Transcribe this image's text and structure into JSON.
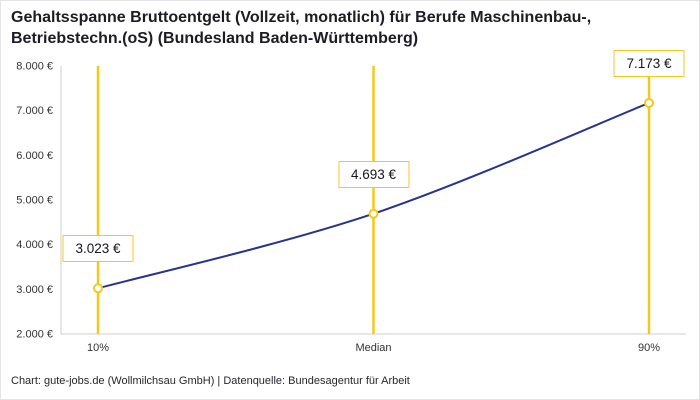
{
  "title": "Gehaltsspanne Bruttoentgelt (Vollzeit, monatlich) für Berufe Maschinenbau-, Betriebstechn.(oS) (Bundesland Baden-Württemberg)",
  "footer": "Chart: gute-jobs.de (Wollmilchsau GmbH) | Datenquelle: Bundesagentur für Arbeit",
  "chart_data": {
    "type": "line",
    "title": "Gehaltsspanne Bruttoentgelt (Vollzeit, monatlich) für Berufe Maschinenbau-, Betriebstechn.(oS) (Bundesland Baden-Württemberg)",
    "categories": [
      "10%",
      "Median",
      "90%"
    ],
    "values": [
      3023,
      4693,
      7173
    ],
    "value_labels": [
      "3.023 €",
      "4.693 €",
      "7.173 €"
    ],
    "ylim": [
      2000,
      8000
    ],
    "y_tick_step": 1000,
    "y_tick_labels": [
      "2.000 €",
      "3.000 €",
      "4.000 €",
      "5.000 €",
      "6.000 €",
      "7.000 €",
      "8.000 €"
    ],
    "xlabel": "",
    "ylabel": "",
    "grid": false,
    "legend": false,
    "colors": {
      "line": "#26348B",
      "accent": "#F8C71C",
      "axis": "#CFCFCF",
      "tick_text": "#333333"
    }
  }
}
